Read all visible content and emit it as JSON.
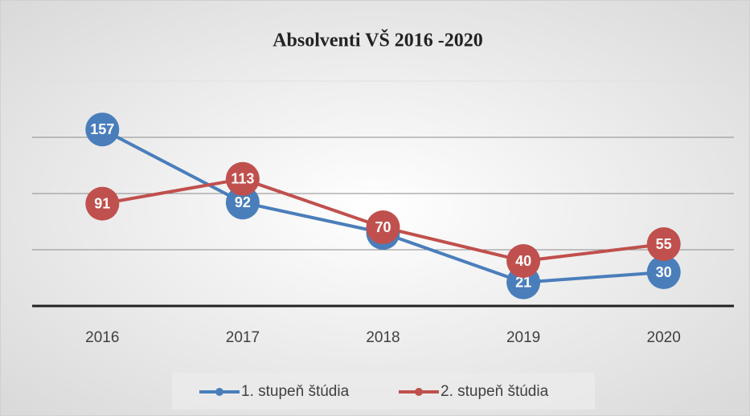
{
  "chart_data": {
    "type": "line",
    "title": "Absolventi VŠ 2016 -2020",
    "categories": [
      "2016",
      "2017",
      "2018",
      "2019",
      "2020"
    ],
    "series": [
      {
        "name": "1. stupeň štúdia",
        "color": "#4a7ebb",
        "values": [
          157,
          92,
          65,
          21,
          30
        ]
      },
      {
        "name": "2. stupeň štúdia",
        "color": "#c0504d",
        "values": [
          91,
          113,
          70,
          40,
          55
        ]
      }
    ],
    "ylim": [
      0,
      200
    ],
    "yticks": [
      0,
      50,
      100,
      150,
      200
    ],
    "grid": true,
    "legend": "bottom"
  }
}
